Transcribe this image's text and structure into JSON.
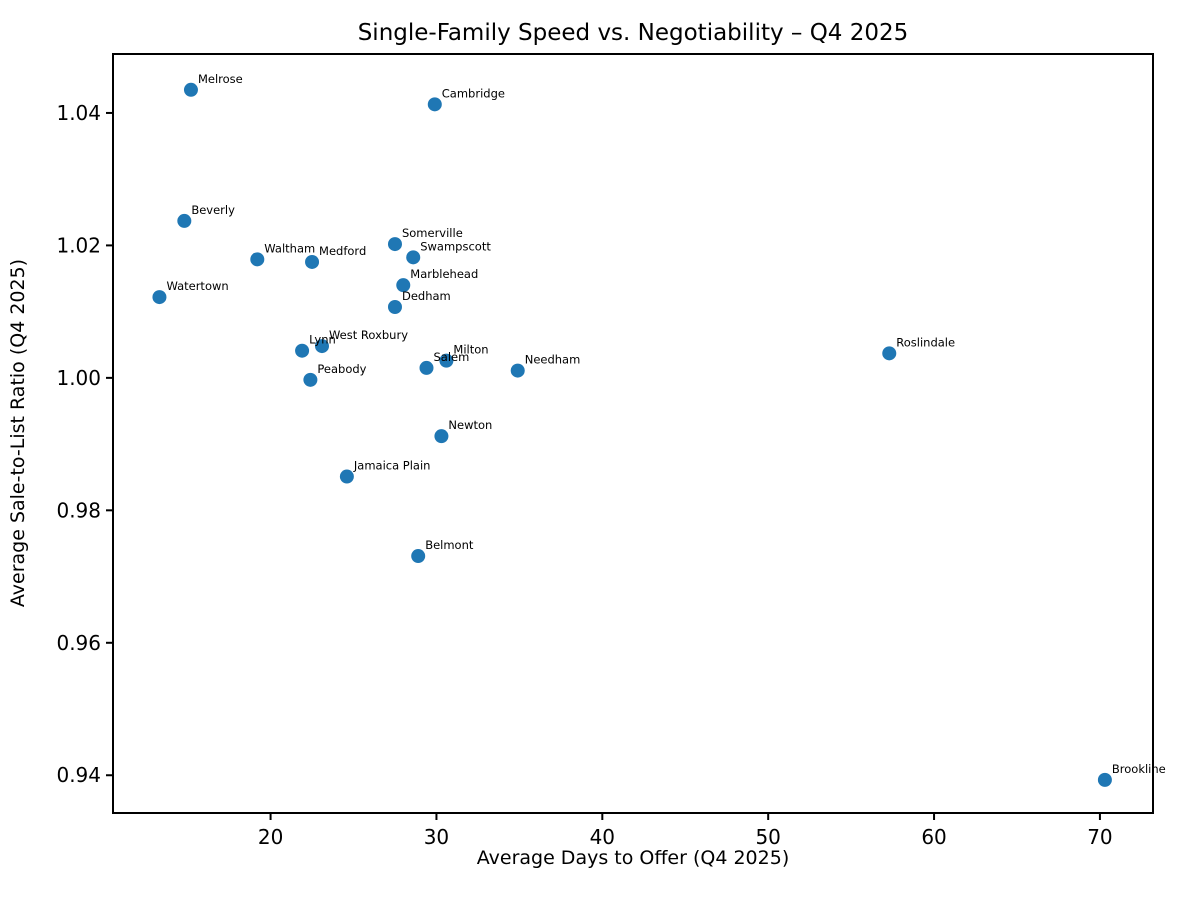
{
  "chart_data": {
    "type": "scatter",
    "title": "Single-Family Speed vs. Negotiability – Q4 2025",
    "xlabel": "Average Days to Offer (Q4 2025)",
    "ylabel": "Average Sale-to-List Ratio (Q4 2025)",
    "xlim": [
      10.5,
      73.2
    ],
    "ylim": [
      0.9343,
      1.0489
    ],
    "xticks": [
      20,
      30,
      40,
      50,
      60,
      70
    ],
    "yticks": [
      1.04,
      1.02,
      1.0,
      0.98,
      0.96,
      0.94
    ],
    "grid": false,
    "legend": "none",
    "marker_color": "#1f77b4",
    "points": [
      {
        "label": "Melrose",
        "x": 15.2,
        "y": 1.0435
      },
      {
        "label": "Cambridge",
        "x": 29.9,
        "y": 1.0413
      },
      {
        "label": "Beverly",
        "x": 14.8,
        "y": 1.0237
      },
      {
        "label": "Somerville",
        "x": 27.5,
        "y": 1.0202
      },
      {
        "label": "Swampscott",
        "x": 28.6,
        "y": 1.0182
      },
      {
        "label": "Waltham",
        "x": 19.2,
        "y": 1.0179
      },
      {
        "label": "Medford",
        "x": 22.5,
        "y": 1.0175
      },
      {
        "label": "Marblehead",
        "x": 28.0,
        "y": 1.014
      },
      {
        "label": "Watertown",
        "x": 13.3,
        "y": 1.0122
      },
      {
        "label": "Dedham",
        "x": 27.5,
        "y": 1.0107
      },
      {
        "label": "West Roxbury",
        "x": 23.1,
        "y": 1.0048
      },
      {
        "label": "Lynn",
        "x": 21.9,
        "y": 1.0041
      },
      {
        "label": "Roslindale",
        "x": 57.3,
        "y": 1.0037
      },
      {
        "label": "Milton",
        "x": 30.6,
        "y": 1.0026
      },
      {
        "label": "Salem",
        "x": 29.4,
        "y": 1.0015
      },
      {
        "label": "Needham",
        "x": 34.9,
        "y": 1.0011
      },
      {
        "label": "Peabody",
        "x": 22.4,
        "y": 0.9997
      },
      {
        "label": "Newton",
        "x": 30.3,
        "y": 0.9912
      },
      {
        "label": "Jamaica Plain",
        "x": 24.6,
        "y": 0.9851
      },
      {
        "label": "Belmont",
        "x": 28.9,
        "y": 0.9731
      },
      {
        "label": "Brookline",
        "x": 70.3,
        "y": 0.9393
      }
    ]
  }
}
